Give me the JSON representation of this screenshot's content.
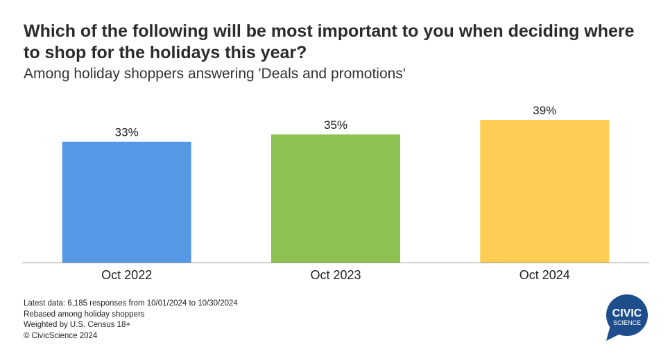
{
  "header": {
    "title": "Which of the following will be most important to you when deciding where to shop for the holidays this year?",
    "subtitle": "Among holiday shoppers answering 'Deals and promotions'"
  },
  "chart_data": {
    "type": "bar",
    "title": "Which of the following will be most important to you when deciding where to shop for the holidays this year?",
    "subtitle": "Among holiday shoppers answering 'Deals and promotions'",
    "categories": [
      "Oct 2022",
      "Oct 2023",
      "Oct 2024"
    ],
    "values": [
      33,
      35,
      39
    ],
    "value_labels": [
      "33%",
      "35%",
      "39%"
    ],
    "colors": [
      "#5599E6",
      "#8DC152",
      "#FECD53"
    ],
    "ylim": [
      0,
      39
    ],
    "grid": false,
    "legend": "none",
    "xlabel": "",
    "ylabel": ""
  },
  "footnotes": {
    "lines": [
      "Latest data: 6,185 responses from 10/01/2024 to 10/30/2024",
      "Rebased among holiday shoppers",
      "Weighted by U.S. Census 18+",
      "© CivicScience 2024"
    ]
  },
  "logo": {
    "line1": "CIVIC",
    "line2": "SCIENCE",
    "color": "#1E4D8C"
  },
  "colors": {
    "axis": "#999999",
    "text": "#222222"
  }
}
